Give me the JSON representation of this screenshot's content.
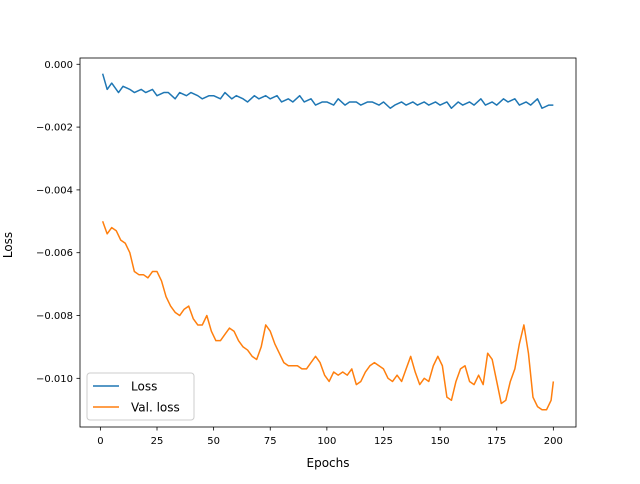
{
  "chart_data": {
    "type": "line",
    "title": "",
    "xlabel": "Epochs",
    "ylabel": "Loss",
    "xlim": [
      -9,
      210
    ],
    "ylim": [
      -0.01155,
      0.0002
    ],
    "xticks": [
      0,
      25,
      50,
      75,
      100,
      125,
      150,
      175,
      200
    ],
    "xtick_labels": [
      "0",
      "25",
      "50",
      "75",
      "100",
      "125",
      "150",
      "175",
      "200"
    ],
    "yticks": [
      0.0,
      -0.002,
      -0.004,
      -0.006,
      -0.008,
      -0.01
    ],
    "ytick_labels": [
      "0.000",
      "−0.002",
      "−0.004",
      "−0.006",
      "−0.008",
      "−0.010"
    ],
    "grid": false,
    "legend": {
      "position": "lower-left"
    },
    "series": [
      {
        "name": "Loss",
        "color": "#1f77b4",
        "x": [
          1,
          3,
          5,
          8,
          10,
          13,
          15,
          18,
          20,
          23,
          25,
          28,
          30,
          33,
          35,
          38,
          40,
          43,
          45,
          48,
          50,
          53,
          55,
          58,
          60,
          63,
          65,
          68,
          70,
          73,
          75,
          78,
          80,
          83,
          85,
          88,
          90,
          93,
          95,
          98,
          100,
          103,
          105,
          108,
          110,
          113,
          115,
          118,
          120,
          123,
          125,
          128,
          130,
          133,
          135,
          138,
          140,
          143,
          145,
          148,
          150,
          153,
          155,
          158,
          160,
          163,
          165,
          168,
          170,
          173,
          175,
          178,
          180,
          183,
          185,
          188,
          190,
          193,
          195,
          198,
          200
        ],
        "values": [
          -0.0003,
          -0.0008,
          -0.0006,
          -0.0009,
          -0.0007,
          -0.0008,
          -0.0009,
          -0.0008,
          -0.0009,
          -0.0008,
          -0.001,
          -0.0009,
          -0.0009,
          -0.0011,
          -0.0009,
          -0.001,
          -0.0009,
          -0.001,
          -0.0011,
          -0.001,
          -0.001,
          -0.0011,
          -0.0009,
          -0.0011,
          -0.001,
          -0.0011,
          -0.0012,
          -0.001,
          -0.0011,
          -0.001,
          -0.0011,
          -0.001,
          -0.0012,
          -0.0011,
          -0.0012,
          -0.001,
          -0.0012,
          -0.0011,
          -0.0013,
          -0.0012,
          -0.0012,
          -0.0013,
          -0.0011,
          -0.0013,
          -0.0012,
          -0.0012,
          -0.0013,
          -0.0012,
          -0.0012,
          -0.0013,
          -0.0012,
          -0.0014,
          -0.0013,
          -0.0012,
          -0.0013,
          -0.0012,
          -0.0013,
          -0.0012,
          -0.0013,
          -0.0012,
          -0.0013,
          -0.0012,
          -0.0014,
          -0.0012,
          -0.0013,
          -0.0012,
          -0.0013,
          -0.0011,
          -0.0013,
          -0.0012,
          -0.0013,
          -0.0011,
          -0.0012,
          -0.0011,
          -0.0013,
          -0.0012,
          -0.0013,
          -0.0011,
          -0.0014,
          -0.0013,
          -0.0013
        ]
      },
      {
        "name": "Val. loss",
        "color": "#ff7f0e",
        "x": [
          1,
          3,
          5,
          7,
          9,
          11,
          13,
          15,
          17,
          19,
          21,
          23,
          25,
          27,
          29,
          31,
          33,
          35,
          37,
          39,
          41,
          43,
          45,
          47,
          49,
          51,
          53,
          55,
          57,
          59,
          61,
          63,
          65,
          67,
          69,
          71,
          73,
          75,
          77,
          79,
          81,
          83,
          85,
          87,
          89,
          91,
          93,
          95,
          97,
          99,
          101,
          103,
          105,
          107,
          109,
          111,
          113,
          115,
          117,
          119,
          121,
          123,
          125,
          127,
          129,
          131,
          133,
          135,
          137,
          139,
          141,
          143,
          145,
          147,
          149,
          151,
          153,
          155,
          157,
          159,
          161,
          163,
          165,
          167,
          169,
          171,
          173,
          175,
          177,
          179,
          181,
          183,
          185,
          187,
          189,
          191,
          193,
          195,
          197,
          199,
          200
        ],
        "values": [
          -0.005,
          -0.0054,
          -0.0052,
          -0.0053,
          -0.0056,
          -0.0057,
          -0.006,
          -0.0066,
          -0.0067,
          -0.0067,
          -0.0068,
          -0.0066,
          -0.0066,
          -0.0069,
          -0.0074,
          -0.0077,
          -0.0079,
          -0.008,
          -0.0078,
          -0.0077,
          -0.0081,
          -0.0083,
          -0.0083,
          -0.008,
          -0.0085,
          -0.0088,
          -0.0088,
          -0.0086,
          -0.0084,
          -0.0085,
          -0.0088,
          -0.009,
          -0.0091,
          -0.0093,
          -0.0094,
          -0.009,
          -0.0083,
          -0.0085,
          -0.0089,
          -0.0092,
          -0.0095,
          -0.0096,
          -0.0096,
          -0.0096,
          -0.0097,
          -0.0097,
          -0.0095,
          -0.0093,
          -0.0095,
          -0.0099,
          -0.0101,
          -0.0098,
          -0.0099,
          -0.0098,
          -0.0099,
          -0.0097,
          -0.0102,
          -0.0101,
          -0.0098,
          -0.0096,
          -0.0095,
          -0.0096,
          -0.0097,
          -0.01,
          -0.0101,
          -0.0099,
          -0.0101,
          -0.0097,
          -0.0093,
          -0.0098,
          -0.0102,
          -0.01,
          -0.0101,
          -0.0096,
          -0.0093,
          -0.0096,
          -0.0106,
          -0.0107,
          -0.0101,
          -0.0097,
          -0.0096,
          -0.0101,
          -0.0102,
          -0.0099,
          -0.0102,
          -0.0092,
          -0.0094,
          -0.0101,
          -0.0108,
          -0.0107,
          -0.0101,
          -0.0097,
          -0.0089,
          -0.0083,
          -0.0092,
          -0.0106,
          -0.0109,
          -0.011,
          -0.011,
          -0.0107,
          -0.0101
        ]
      }
    ]
  }
}
